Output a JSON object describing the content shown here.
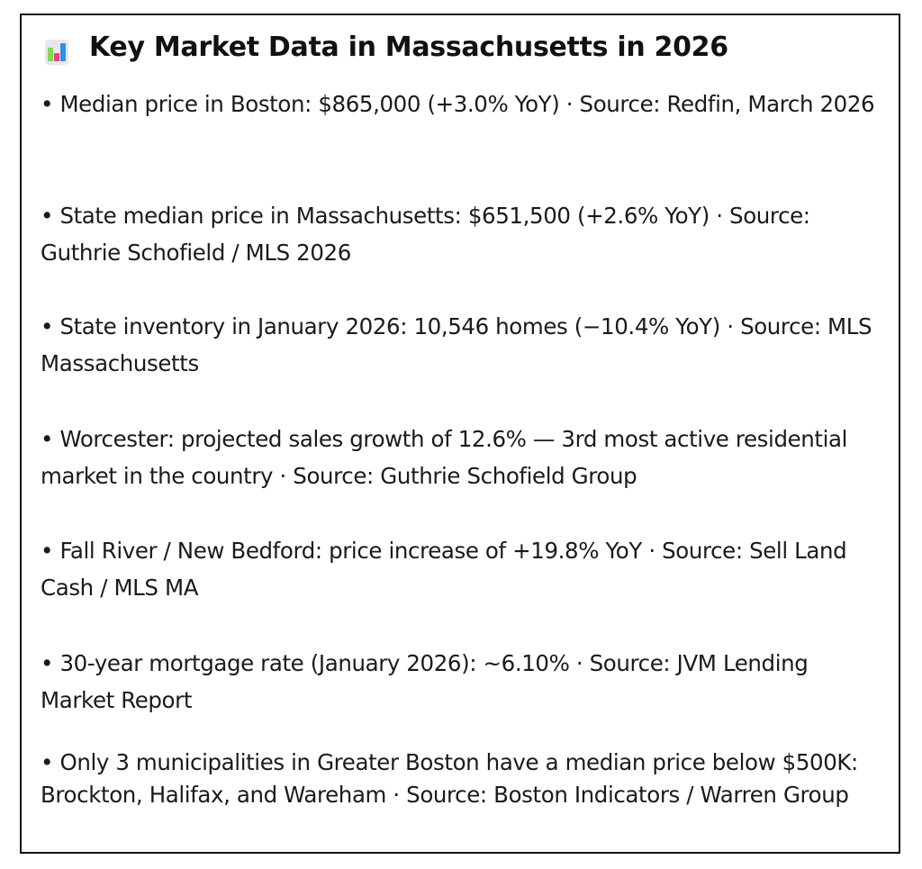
{
  "title": "Key Market Data in Massachusetts in 2026",
  "title_icon": "bar-chart-icon",
  "items": [
    {
      "text": "• Median price in Boston: $865,000 (+3.0% YoY) · Source: Redfin, March 2026"
    },
    {
      "text": "• State median price in Massachusetts: $651,500 (+2.6% YoY) · Source: Guthrie Schofield / MLS 2026"
    },
    {
      "text": "• State inventory in January 2026: 10,546 homes (−10.4% YoY) · Source: MLS Massachusetts"
    },
    {
      "text": "• Worcester: projected sales growth of 12.6% — 3rd most active residential market in the country · Source: Guthrie Schofield Group"
    },
    {
      "text": "• Fall River / New Bedford: price increase of +19.8% YoY · Source: Sell Land Cash / MLS MA"
    },
    {
      "text": "• 30-year mortgage rate (January 2026): ~6.10% · Source: JVM Lending Market Report"
    },
    {
      "text": "• Only 3 municipalities in Greater Boston have a median price below $500K: Brockton, Halifax, and Wareham · Source: Boston Indicators / Warren Group"
    }
  ]
}
